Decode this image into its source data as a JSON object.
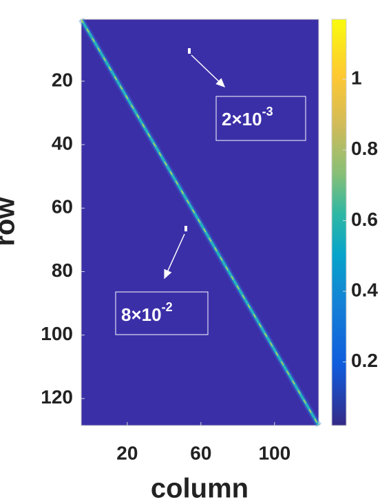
{
  "chart_data": {
    "type": "heatmap",
    "xlabel": "column",
    "ylabel": "row",
    "xlim": [
      -5,
      124
    ],
    "xticks": [
      20,
      60,
      100
    ],
    "ylim": [
      128.5,
      0.5
    ],
    "yticks": [
      20,
      40,
      60,
      80,
      100,
      120
    ],
    "clim": [
      0.02,
      1.17
    ],
    "cticks": [
      0.2,
      0.4,
      0.6,
      0.8,
      1
    ],
    "colormap": "parula",
    "annotations": [
      {
        "base": "2×10",
        "exponent": "-3"
      },
      {
        "base": "8×10",
        "exponent": "-2"
      }
    ]
  }
}
